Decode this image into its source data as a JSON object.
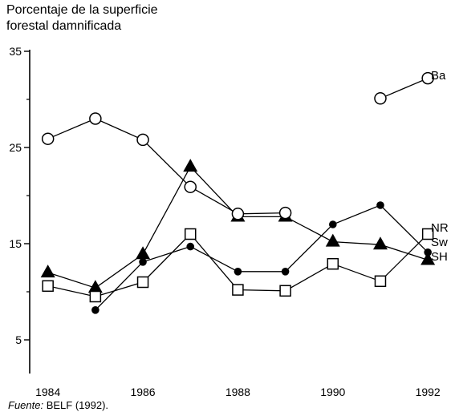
{
  "chart_data": {
    "type": "line",
    "ylabel_lines": [
      "Porcentaje de la superficie",
      "forestal damnificada"
    ],
    "xlabel": "",
    "x": [
      1984,
      1985,
      1986,
      1987,
      1988,
      1989,
      1990,
      1991,
      1992
    ],
    "x_ticks": [
      1984,
      1986,
      1988,
      1990,
      1992
    ],
    "x_tick_labels": [
      "1984",
      "1986",
      "1988",
      "1990",
      "1992"
    ],
    "xlim": [
      1983.6,
      1992.2
    ],
    "y_ticks": [
      5,
      15,
      25,
      35
    ],
    "y_tick_labels": [
      "5",
      "15",
      "25",
      "35"
    ],
    "ylim": [
      1.5,
      35
    ],
    "grid": false,
    "legend": "labels at line ends (right)",
    "series": [
      {
        "name": "Ba",
        "marker": "open-circle",
        "values": [
          25.9,
          28.0,
          25.8,
          20.9,
          18.1,
          18.2,
          null,
          30.1,
          32.2
        ]
      },
      {
        "name": "Sw",
        "marker": "filled-circle",
        "values": [
          null,
          8.1,
          13.1,
          14.7,
          12.1,
          12.1,
          17.0,
          19.0,
          14.1
        ]
      },
      {
        "name": "SH",
        "marker": "filled-triangle",
        "values": [
          12.0,
          10.4,
          13.9,
          23.0,
          17.8,
          17.8,
          15.2,
          14.9,
          13.3
        ]
      },
      {
        "name": "NR",
        "marker": "open-square",
        "values": [
          10.6,
          9.5,
          11.0,
          16.0,
          10.2,
          10.1,
          12.9,
          11.1,
          16.0
        ]
      }
    ]
  },
  "source": {
    "label": "Fuente:",
    "text": " BELF (1992)."
  }
}
